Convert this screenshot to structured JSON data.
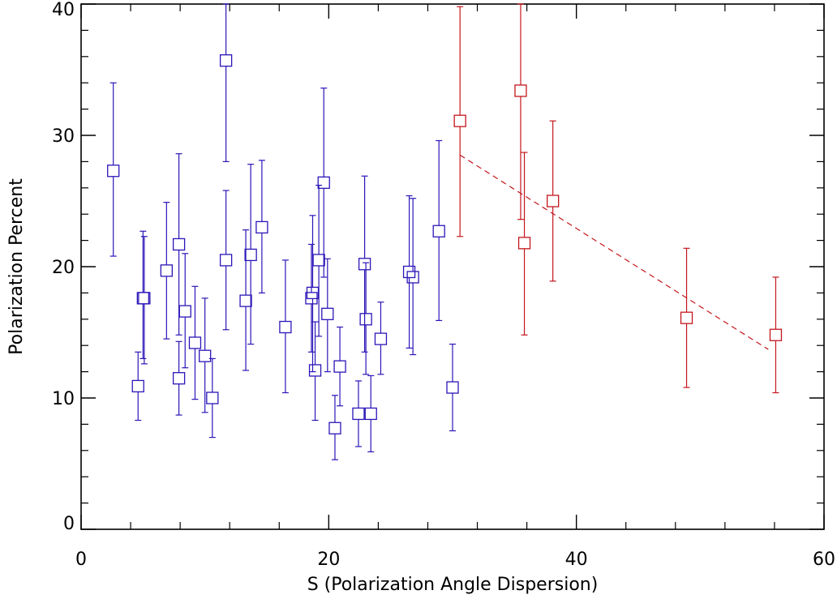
{
  "chart_data": {
    "type": "scatter",
    "title": "",
    "xlabel": "S (Polarization Angle Dispersion)",
    "ylabel": "Polarization Percent",
    "xlim": [
      0,
      60
    ],
    "ylim": [
      0,
      40
    ],
    "xticks": [
      "0",
      "20",
      "40",
      "60"
    ],
    "yticks": [
      "0",
      "10",
      "20",
      "30",
      "40"
    ],
    "grid": false,
    "legend": "none",
    "marker": "open-square",
    "series": [
      {
        "color": "#2b16b8",
        "points": [
          {
            "x": 2.6,
            "y": 27.3,
            "ylo": 20.8,
            "yhi": 34.0
          },
          {
            "x": 4.6,
            "y": 10.9,
            "ylo": 8.3,
            "yhi": 13.5
          },
          {
            "x": 5.0,
            "y": 17.6,
            "ylo": 13.0,
            "yhi": 22.7
          },
          {
            "x": 5.1,
            "y": 17.6,
            "ylo": 12.6,
            "yhi": 22.3
          },
          {
            "x": 6.9,
            "y": 19.7,
            "ylo": 14.5,
            "yhi": 24.9
          },
          {
            "x": 7.9,
            "y": 21.7,
            "ylo": 14.8,
            "yhi": 28.6
          },
          {
            "x": 7.9,
            "y": 11.5,
            "ylo": 8.7,
            "yhi": 14.3
          },
          {
            "x": 8.4,
            "y": 16.6,
            "ylo": 12.3,
            "yhi": 21.0
          },
          {
            "x": 9.2,
            "y": 14.2,
            "ylo": 9.9,
            "yhi": 18.5
          },
          {
            "x": 10.0,
            "y": 13.2,
            "ylo": 8.9,
            "yhi": 17.6
          },
          {
            "x": 10.6,
            "y": 10.0,
            "ylo": 7.0,
            "yhi": 13.0
          },
          {
            "x": 11.7,
            "y": 35.7,
            "ylo": 28.0,
            "yhi": 40.0
          },
          {
            "x": 11.7,
            "y": 20.5,
            "ylo": 15.2,
            "yhi": 25.8
          },
          {
            "x": 13.3,
            "y": 17.4,
            "ylo": 12.1,
            "yhi": 22.8
          },
          {
            "x": 13.7,
            "y": 20.9,
            "ylo": 14.1,
            "yhi": 27.8
          },
          {
            "x": 14.6,
            "y": 23.0,
            "ylo": 18.0,
            "yhi": 28.1
          },
          {
            "x": 16.5,
            "y": 15.4,
            "ylo": 10.4,
            "yhi": 20.5
          },
          {
            "x": 18.6,
            "y": 17.6,
            "ylo": 13.5,
            "yhi": 21.7
          },
          {
            "x": 18.7,
            "y": 18.0,
            "ylo": 12.0,
            "yhi": 23.9
          },
          {
            "x": 18.9,
            "y": 12.1,
            "ylo": 8.3,
            "yhi": 15.8
          },
          {
            "x": 19.2,
            "y": 20.5,
            "ylo": 14.7,
            "yhi": 26.2
          },
          {
            "x": 19.6,
            "y": 26.4,
            "ylo": 19.2,
            "yhi": 33.6
          },
          {
            "x": 19.9,
            "y": 16.4,
            "ylo": 12.0,
            "yhi": 20.6
          },
          {
            "x": 20.5,
            "y": 7.7,
            "ylo": 5.3,
            "yhi": 10.2
          },
          {
            "x": 20.9,
            "y": 12.4,
            "ylo": 9.4,
            "yhi": 15.4
          },
          {
            "x": 22.4,
            "y": 8.8,
            "ylo": 6.3,
            "yhi": 11.3
          },
          {
            "x": 22.9,
            "y": 20.2,
            "ylo": 13.5,
            "yhi": 26.9
          },
          {
            "x": 23.0,
            "y": 16.0,
            "ylo": 11.8,
            "yhi": 20.3
          },
          {
            "x": 23.4,
            "y": 8.8,
            "ylo": 5.9,
            "yhi": 11.7
          },
          {
            "x": 24.2,
            "y": 14.5,
            "ylo": 11.8,
            "yhi": 17.3
          },
          {
            "x": 26.5,
            "y": 19.6,
            "ylo": 13.8,
            "yhi": 25.4
          },
          {
            "x": 26.8,
            "y": 19.2,
            "ylo": 13.3,
            "yhi": 25.2
          },
          {
            "x": 28.9,
            "y": 22.7,
            "ylo": 15.9,
            "yhi": 29.6
          },
          {
            "x": 30.0,
            "y": 10.8,
            "ylo": 7.5,
            "yhi": 14.1
          }
        ]
      },
      {
        "color": "#c4161c",
        "points": [
          {
            "x": 30.6,
            "y": 31.1,
            "ylo": 22.3,
            "yhi": 39.8
          },
          {
            "x": 35.5,
            "y": 33.4,
            "ylo": 23.6,
            "yhi": 40.0
          },
          {
            "x": 35.8,
            "y": 21.8,
            "ylo": 14.8,
            "yhi": 28.7
          },
          {
            "x": 38.1,
            "y": 25.0,
            "ylo": 18.9,
            "yhi": 31.1
          },
          {
            "x": 48.9,
            "y": 16.1,
            "ylo": 10.8,
            "yhi": 21.4
          },
          {
            "x": 56.1,
            "y": 14.8,
            "ylo": 10.4,
            "yhi": 19.2
          }
        ]
      }
    ],
    "fit_line": {
      "color": "#c4161c",
      "style": "dashed",
      "x": [
        30.6,
        55.5
      ],
      "y": [
        28.5,
        13.7
      ]
    }
  }
}
